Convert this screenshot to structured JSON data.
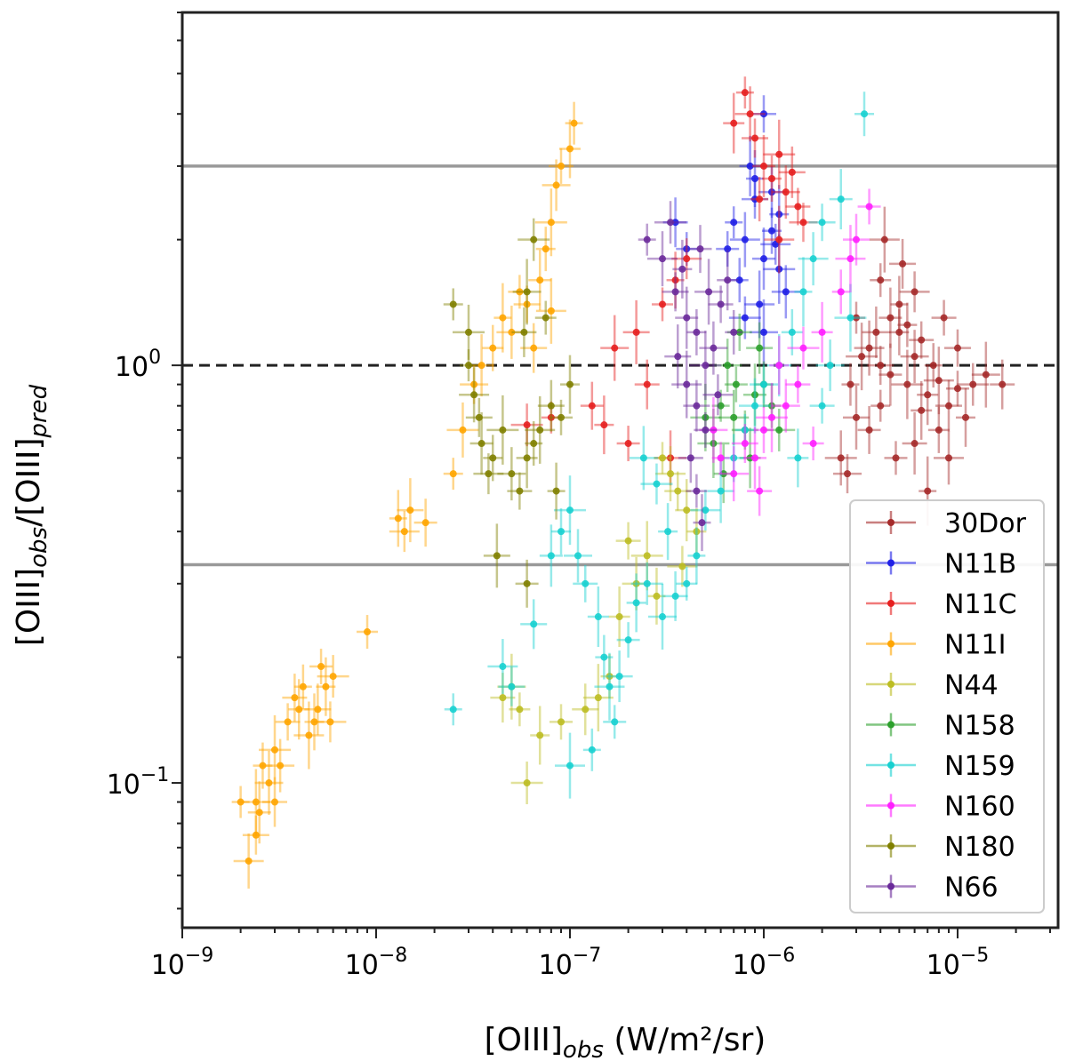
{
  "chart_data": {
    "type": "scatter",
    "title": "",
    "xlabel_main": "[OIII]",
    "xlabel_sub": "obs",
    "xlabel_unit": " (W/m²/sr)",
    "ylabel_a": "[OIII]",
    "ylabel_a_sub": "obs",
    "ylabel_sep": "/[OIII]",
    "ylabel_b_sub": "pred",
    "xscale": "log",
    "yscale": "log",
    "xlim": [
      1e-09,
      3.3e-05
    ],
    "ylim": [
      0.045,
      7.0
    ],
    "x_ticks": [
      {
        "value": 1e-09,
        "base": "10",
        "exp": "−9"
      },
      {
        "value": 1e-08,
        "base": "10",
        "exp": "−8"
      },
      {
        "value": 1e-07,
        "base": "10",
        "exp": "−7"
      },
      {
        "value": 1e-06,
        "base": "10",
        "exp": "−6"
      },
      {
        "value": 1e-05,
        "base": "10",
        "exp": "−5"
      }
    ],
    "y_ticks": [
      {
        "value": 0.1,
        "base": "10",
        "exp": "−1"
      },
      {
        "value": 1.0,
        "base": "10",
        "exp": "0"
      }
    ],
    "reference_lines": [
      {
        "y": 3.0,
        "style": "solid",
        "color": "#999999"
      },
      {
        "y": 1.0,
        "style": "dashed",
        "color": "#222222"
      },
      {
        "y": 0.333,
        "style": "solid",
        "color": "#999999"
      }
    ],
    "legend_position": "lower-right",
    "series": [
      {
        "name": "30Dor",
        "color": "#a52a2a",
        "points": [
          [
            3e-06,
            1.3
          ],
          [
            3.5e-06,
            1.1
          ],
          [
            4e-06,
            1.0
          ],
          [
            4.5e-06,
            0.95
          ],
          [
            5e-06,
            1.2
          ],
          [
            5.5e-06,
            0.9
          ],
          [
            6e-06,
            1.05
          ],
          [
            6.5e-06,
            1.15
          ],
          [
            7e-06,
            0.85
          ],
          [
            7.5e-06,
            1.0
          ],
          [
            8e-06,
            0.92
          ],
          [
            9e-06,
            0.8
          ],
          [
            1e-05,
            0.88
          ],
          [
            1.1e-05,
            0.75
          ],
          [
            1.2e-05,
            0.9
          ],
          [
            1.4e-05,
            0.95
          ],
          [
            1.7e-05,
            0.9
          ],
          [
            4e-06,
            1.6
          ],
          [
            5e-06,
            1.4
          ],
          [
            6e-06,
            1.5
          ],
          [
            3e-06,
            0.75
          ],
          [
            3.5e-06,
            0.7
          ],
          [
            4e-06,
            0.8
          ],
          [
            2.5e-06,
            0.6
          ],
          [
            2.7e-06,
            0.55
          ],
          [
            6e-06,
            0.65
          ],
          [
            8e-06,
            0.7
          ],
          [
            7e-06,
            0.5
          ],
          [
            9e-06,
            0.6
          ],
          [
            1e-05,
            1.1
          ],
          [
            4.5e-06,
            1.3
          ],
          [
            5.5e-06,
            1.25
          ],
          [
            3.2e-06,
            1.05
          ],
          [
            3.8e-06,
            1.2
          ],
          [
            8.5e-06,
            1.3
          ],
          [
            6.5e-06,
            0.78
          ],
          [
            2.8e-06,
            0.9
          ],
          [
            4.2e-06,
            2.0
          ],
          [
            5.2e-06,
            1.75
          ],
          [
            4.8e-06,
            0.6
          ]
        ]
      },
      {
        "name": "N11B",
        "color": "#1f1fe6",
        "points": [
          [
            7e-07,
            2.2
          ],
          [
            8e-07,
            2.0
          ],
          [
            9e-07,
            2.5
          ],
          [
            1e-06,
            1.8
          ],
          [
            1.1e-06,
            2.1
          ],
          [
            1.2e-06,
            1.7
          ],
          [
            1.3e-06,
            1.5
          ],
          [
            1e-06,
            4.0
          ],
          [
            8.5e-07,
            3.0
          ],
          [
            7.5e-07,
            1.6
          ],
          [
            9.5e-07,
            1.4
          ],
          [
            1.1e-06,
            2.6
          ],
          [
            6.5e-07,
            1.9
          ],
          [
            1.2e-06,
            2.3
          ],
          [
            8e-07,
            1.3
          ],
          [
            1e-06,
            1.2
          ],
          [
            3.5e-07,
            2.2
          ],
          [
            4e-07,
            1.9
          ],
          [
            9e-07,
            2.8
          ],
          [
            1.15e-06,
            1.95
          ]
        ]
      },
      {
        "name": "N11C",
        "color": "#e61f1f",
        "points": [
          [
            8e-07,
            4.5
          ],
          [
            8.5e-07,
            4.0
          ],
          [
            9e-07,
            3.5
          ],
          [
            1e-06,
            3.0
          ],
          [
            1.1e-06,
            2.8
          ],
          [
            1.2e-06,
            3.2
          ],
          [
            1.3e-06,
            2.6
          ],
          [
            1.5e-06,
            2.4
          ],
          [
            7e-07,
            3.8
          ],
          [
            9.5e-07,
            2.5
          ],
          [
            1.2e-06,
            2.0
          ],
          [
            1.4e-06,
            2.9
          ],
          [
            2e-07,
            0.65
          ],
          [
            1.5e-07,
            0.72
          ],
          [
            6e-08,
            0.72
          ],
          [
            1.7e-07,
            1.1
          ],
          [
            2.5e-07,
            0.9
          ],
          [
            3e-07,
            1.4
          ],
          [
            3.5e-07,
            1.6
          ],
          [
            4e-07,
            1.8
          ],
          [
            2.2e-07,
            1.2
          ],
          [
            1.3e-07,
            0.8
          ],
          [
            8e-08,
            0.75
          ],
          [
            3.3e-07,
            0.6
          ],
          [
            1.6e-06,
            2.2
          ]
        ]
      },
      {
        "name": "N11I",
        "color": "#ffa500",
        "points": [
          [
            2e-09,
            0.09
          ],
          [
            2.2e-09,
            0.065
          ],
          [
            2.4e-09,
            0.075
          ],
          [
            2.5e-09,
            0.085
          ],
          [
            2.6e-09,
            0.11
          ],
          [
            3e-09,
            0.12
          ],
          [
            3.2e-09,
            0.11
          ],
          [
            3.5e-09,
            0.14
          ],
          [
            4e-09,
            0.15
          ],
          [
            4.2e-09,
            0.17
          ],
          [
            4.5e-09,
            0.13
          ],
          [
            5e-09,
            0.15
          ],
          [
            5.2e-09,
            0.19
          ],
          [
            5.5e-09,
            0.17
          ],
          [
            6e-09,
            0.18
          ],
          [
            2.4e-09,
            0.09
          ],
          [
            3e-09,
            0.09
          ],
          [
            9e-09,
            0.23
          ],
          [
            1.3e-08,
            0.43
          ],
          [
            1.4e-08,
            0.4
          ],
          [
            1.5e-08,
            0.45
          ],
          [
            1.8e-08,
            0.42
          ],
          [
            2.5e-08,
            0.55
          ],
          [
            2.8e-08,
            0.7
          ],
          [
            3.2e-08,
            0.9
          ],
          [
            3.5e-08,
            1.0
          ],
          [
            4e-08,
            1.1
          ],
          [
            4.5e-08,
            1.3
          ],
          [
            5e-08,
            1.2
          ],
          [
            6e-08,
            1.4
          ],
          [
            7e-08,
            1.6
          ],
          [
            7.5e-08,
            1.9
          ],
          [
            8e-08,
            2.2
          ],
          [
            8.5e-08,
            2.7
          ],
          [
            9e-08,
            3.0
          ],
          [
            1e-07,
            3.3
          ],
          [
            1.05e-07,
            3.8
          ],
          [
            8e-08,
            1.35
          ],
          [
            6.5e-08,
            1.1
          ],
          [
            5.5e-08,
            1.5
          ],
          [
            4.8e-09,
            0.14
          ],
          [
            5.8e-09,
            0.14
          ],
          [
            2.8e-09,
            0.1
          ],
          [
            3.8e-09,
            0.16
          ]
        ]
      },
      {
        "name": "N44",
        "color": "#bcbd22",
        "points": [
          [
            3e-07,
            0.6
          ],
          [
            3.3e-07,
            0.55
          ],
          [
            3.6e-07,
            0.5
          ],
          [
            4e-07,
            0.45
          ],
          [
            4.5e-07,
            0.4
          ],
          [
            2.5e-07,
            0.35
          ],
          [
            2.2e-07,
            0.3
          ],
          [
            2e-07,
            0.38
          ],
          [
            1.8e-07,
            0.25
          ],
          [
            1.6e-07,
            0.18
          ],
          [
            1.4e-07,
            0.16
          ],
          [
            1.2e-07,
            0.15
          ],
          [
            9e-08,
            0.14
          ],
          [
            7e-08,
            0.13
          ],
          [
            6e-08,
            0.1
          ],
          [
            5e-08,
            0.17
          ],
          [
            4.5e-08,
            0.16
          ],
          [
            5.5e-08,
            0.15
          ],
          [
            2.8e-07,
            0.28
          ],
          [
            3.8e-07,
            0.33
          ]
        ]
      },
      {
        "name": "N158",
        "color": "#2ca02c",
        "points": [
          [
            6e-07,
            0.8
          ],
          [
            7e-07,
            0.75
          ],
          [
            8e-07,
            0.7
          ],
          [
            9e-07,
            0.85
          ],
          [
            1e-06,
            0.9
          ],
          [
            5.5e-07,
            0.65
          ],
          [
            6.5e-07,
            1.0
          ],
          [
            7.5e-07,
            1.2
          ],
          [
            8.5e-07,
            0.6
          ],
          [
            1.1e-06,
            0.8
          ],
          [
            5e-07,
            0.75
          ],
          [
            9.5e-07,
            1.1
          ],
          [
            7.2e-07,
            0.9
          ],
          [
            6.2e-07,
            0.55
          ],
          [
            1.2e-06,
            0.7
          ]
        ]
      },
      {
        "name": "N159",
        "color": "#17d0d0",
        "points": [
          [
            2.5e-08,
            0.15
          ],
          [
            4.5e-08,
            0.19
          ],
          [
            5e-08,
            0.17
          ],
          [
            8e-08,
            0.35
          ],
          [
            9e-08,
            0.4
          ],
          [
            1e-07,
            0.45
          ],
          [
            1.1e-07,
            0.35
          ],
          [
            1.2e-07,
            0.3
          ],
          [
            1.4e-07,
            0.25
          ],
          [
            1.5e-07,
            0.2
          ],
          [
            1.6e-07,
            0.17
          ],
          [
            1.8e-07,
            0.18
          ],
          [
            2e-07,
            0.22
          ],
          [
            2.2e-07,
            0.27
          ],
          [
            2.5e-07,
            0.3
          ],
          [
            3e-07,
            0.25
          ],
          [
            3.5e-07,
            0.28
          ],
          [
            4e-07,
            0.3
          ],
          [
            4.5e-07,
            0.35
          ],
          [
            5e-07,
            0.45
          ],
          [
            6e-07,
            0.5
          ],
          [
            7e-07,
            0.6
          ],
          [
            8e-07,
            0.7
          ],
          [
            9e-07,
            0.8
          ],
          [
            1e-06,
            0.9
          ],
          [
            1.2e-06,
            1.0
          ],
          [
            1.4e-06,
            1.2
          ],
          [
            1.6e-06,
            1.5
          ],
          [
            1.8e-06,
            1.8
          ],
          [
            2e-06,
            2.2
          ],
          [
            2.5e-06,
            2.5
          ],
          [
            3.3e-06,
            4.0
          ],
          [
            2.8e-06,
            1.3
          ],
          [
            2.2e-06,
            1.0
          ],
          [
            2e-06,
            0.8
          ],
          [
            1.5e-06,
            0.6
          ],
          [
            1.3e-07,
            0.12
          ],
          [
            1e-07,
            0.11
          ],
          [
            6.5e-08,
            0.24
          ],
          [
            1.7e-07,
            0.14
          ],
          [
            3.2e-07,
            0.4
          ],
          [
            2.8e-07,
            0.52
          ],
          [
            2.4e-07,
            0.6
          ]
        ]
      },
      {
        "name": "N160",
        "color": "#ff1fff",
        "points": [
          [
            6e-07,
            0.6
          ],
          [
            7e-07,
            0.55
          ],
          [
            8e-07,
            0.65
          ],
          [
            9e-07,
            0.6
          ],
          [
            1e-06,
            0.7
          ],
          [
            1.1e-06,
            0.75
          ],
          [
            1.3e-06,
            0.8
          ],
          [
            1.5e-06,
            0.9
          ],
          [
            2e-06,
            1.2
          ],
          [
            2.5e-06,
            1.5
          ],
          [
            2.8e-06,
            1.8
          ],
          [
            3e-06,
            2.0
          ],
          [
            3.5e-06,
            2.4
          ],
          [
            1.2e-06,
            1.0
          ],
          [
            1.6e-06,
            1.1
          ],
          [
            5.5e-07,
            0.7
          ],
          [
            9.5e-07,
            0.5
          ],
          [
            1.8e-06,
            0.65
          ]
        ]
      },
      {
        "name": "N180",
        "color": "#808000",
        "points": [
          [
            3e-08,
            1.0
          ],
          [
            3.2e-08,
            0.85
          ],
          [
            3.4e-08,
            0.75
          ],
          [
            3.5e-08,
            0.65
          ],
          [
            4e-08,
            0.6
          ],
          [
            4.5e-08,
            0.7
          ],
          [
            5e-08,
            0.55
          ],
          [
            5.5e-08,
            0.5
          ],
          [
            6e-08,
            0.6
          ],
          [
            6.5e-08,
            0.65
          ],
          [
            7e-08,
            0.7
          ],
          [
            8e-08,
            0.8
          ],
          [
            9e-08,
            0.75
          ],
          [
            1e-07,
            0.9
          ],
          [
            6.5e-08,
            2.0
          ],
          [
            6e-08,
            1.5
          ],
          [
            5.8e-08,
            1.2
          ],
          [
            7.5e-08,
            1.3
          ],
          [
            8.5e-08,
            0.5
          ],
          [
            3.8e-08,
            0.55
          ],
          [
            4.2e-08,
            0.35
          ],
          [
            6e-08,
            0.3
          ],
          [
            2.5e-08,
            1.4
          ],
          [
            3e-08,
            1.2
          ]
        ]
      },
      {
        "name": "N66",
        "color": "#6a2a9a",
        "points": [
          [
            2.5e-07,
            2.0
          ],
          [
            3e-07,
            1.8
          ],
          [
            3.5e-07,
            1.5
          ],
          [
            4e-07,
            1.3
          ],
          [
            4.5e-07,
            1.2
          ],
          [
            5e-07,
            1.0
          ],
          [
            5.5e-07,
            1.1
          ],
          [
            6e-07,
            1.4
          ],
          [
            6.5e-07,
            1.6
          ],
          [
            7e-07,
            1.2
          ],
          [
            4e-07,
            0.9
          ],
          [
            4.5e-07,
            0.8
          ],
          [
            5e-07,
            0.7
          ],
          [
            3.8e-07,
            1.7
          ],
          [
            3.3e-07,
            2.2
          ],
          [
            5.2e-07,
            1.5
          ],
          [
            4.2e-07,
            0.6
          ],
          [
            4.5e-07,
            0.5
          ],
          [
            4.8e-07,
            0.42
          ],
          [
            5.8e-07,
            0.85
          ],
          [
            3.6e-07,
            1.05
          ],
          [
            4.7e-07,
            1.9
          ]
        ]
      }
    ]
  }
}
